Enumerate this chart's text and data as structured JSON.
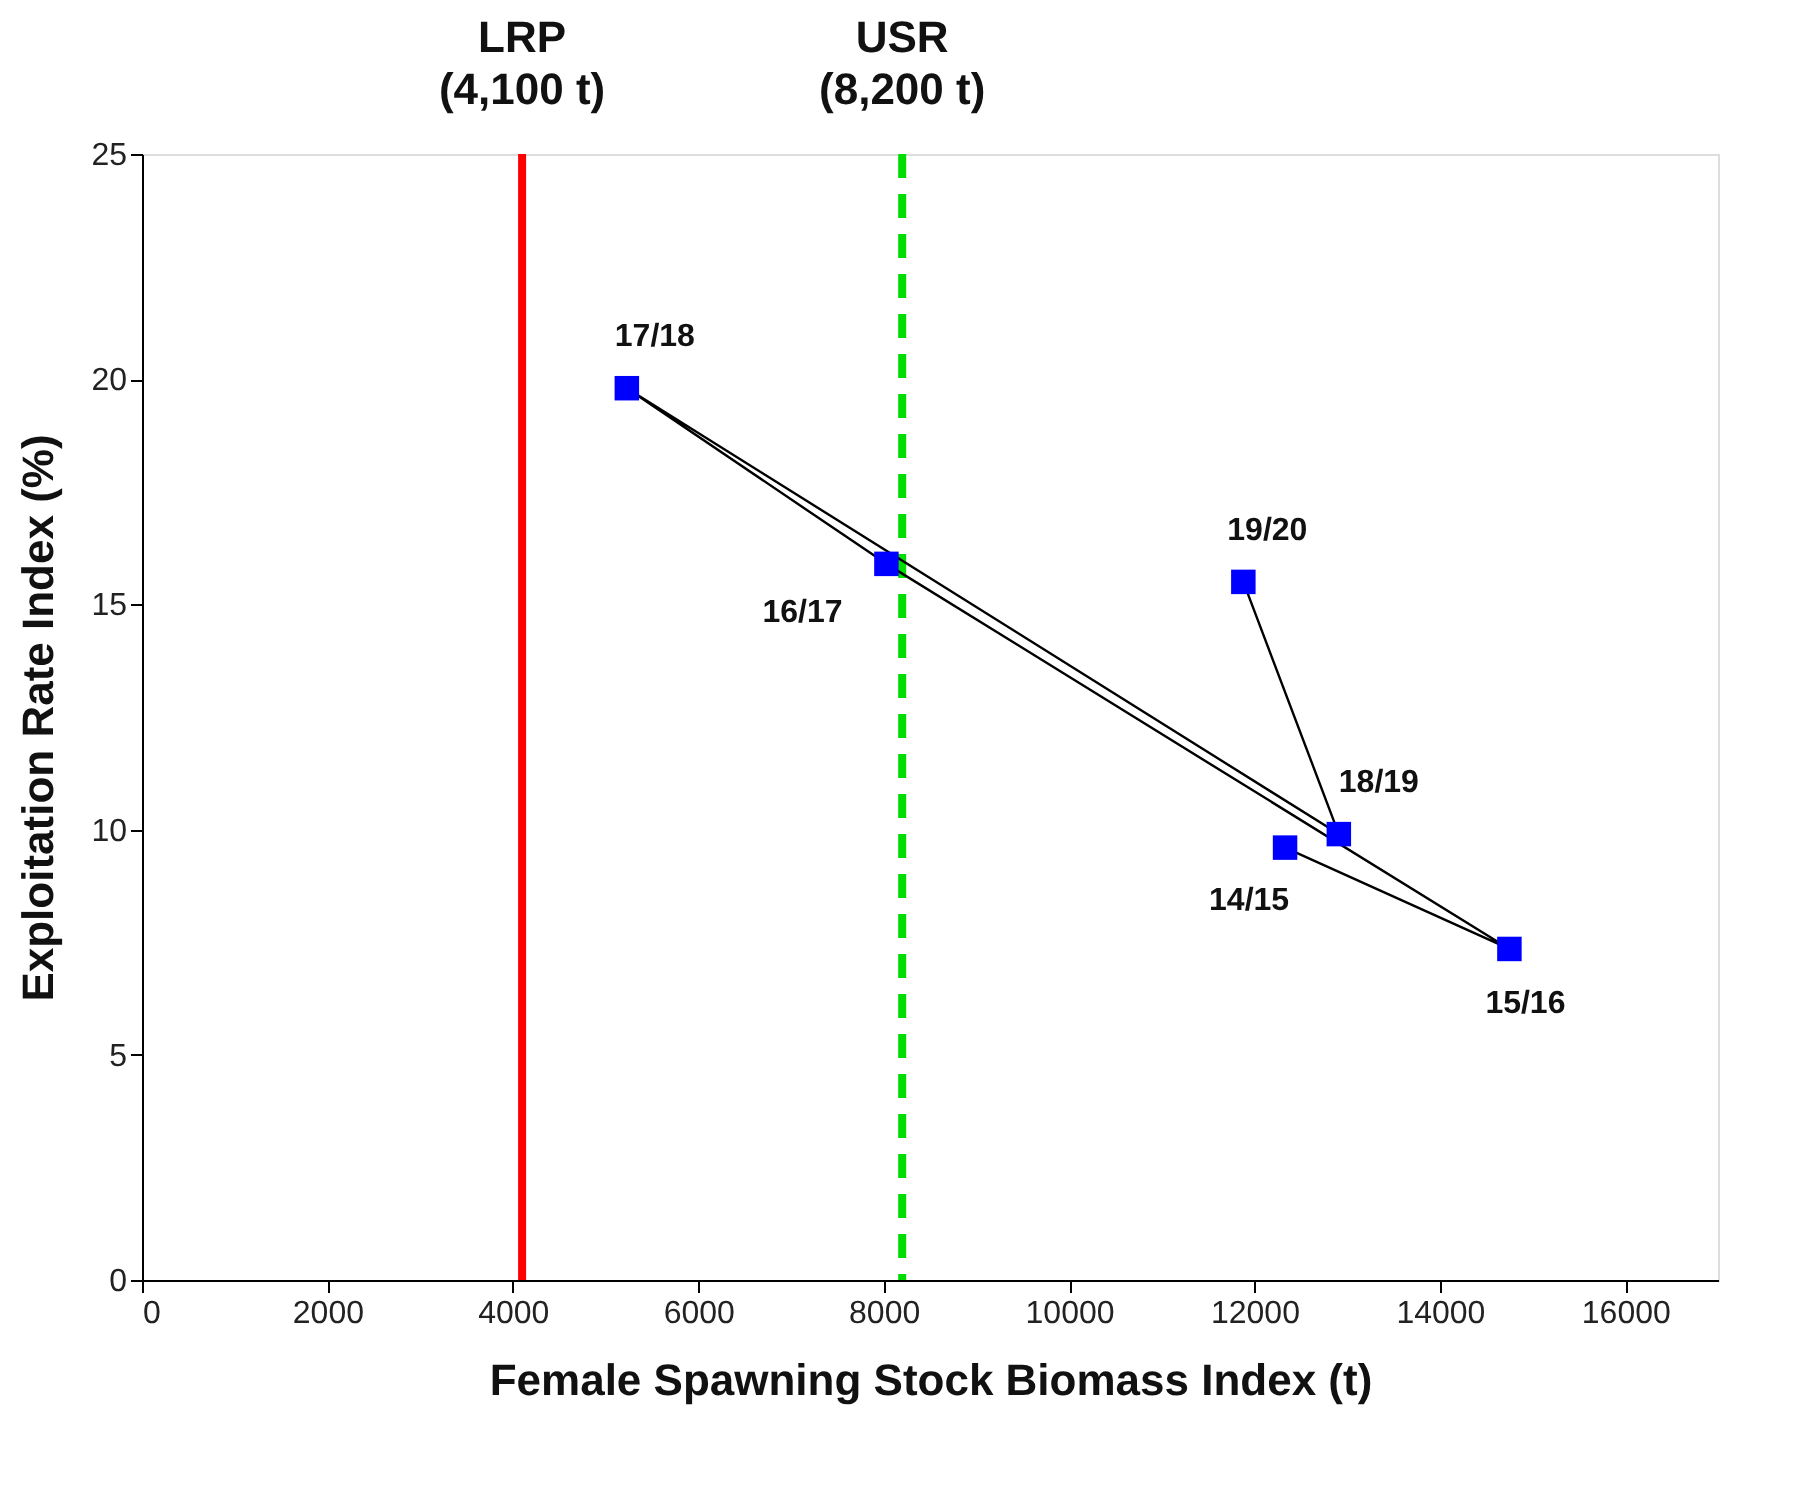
{
  "chart_data": {
    "type": "line",
    "xlabel": "Female Spawning Stock Biomass Index (t)",
    "ylabel": "Exploitation Rate Index (%)",
    "x": [
      12330,
      14750,
      8030,
      5230,
      12910,
      11880
    ],
    "series": [
      {
        "color": "#0000ff",
        "values": [
          9.6,
          7.35,
          15.9,
          19.8,
          9.9,
          15.5
        ]
      }
    ],
    "marker": "square",
    "line_style": "solid",
    "grid": false,
    "xlim": [
      0,
      17000
    ],
    "xticks": [
      0,
      2000,
      4000,
      6000,
      8000,
      10000,
      12000,
      14000,
      16000
    ],
    "ylim": [
      0,
      25
    ],
    "yticks": [
      0,
      5,
      10,
      15,
      20,
      25
    ],
    "ref_lines": [
      {
        "axis": "x",
        "value": 4100,
        "label": "LRP\n(4,100 t)",
        "color": "#ff0000",
        "line_style": "solid"
      },
      {
        "axis": "x",
        "value": 8200,
        "label": "USR\n(8,200 t)",
        "color": "#00dd00",
        "line_style": "dashed"
      }
    ],
    "annotations": [
      {
        "text": "14/15",
        "x": 12330,
        "y": 9.6
      },
      {
        "text": "15/16",
        "x": 14750,
        "y": 7.35
      },
      {
        "text": "16/17",
        "x": 8030,
        "y": 15.9
      },
      {
        "text": "17/18",
        "x": 5230,
        "y": 19.8
      },
      {
        "text": "18/19",
        "x": 12910,
        "y": 9.9
      },
      {
        "text": "19/20",
        "x": 11880,
        "y": 15.5
      }
    ]
  }
}
